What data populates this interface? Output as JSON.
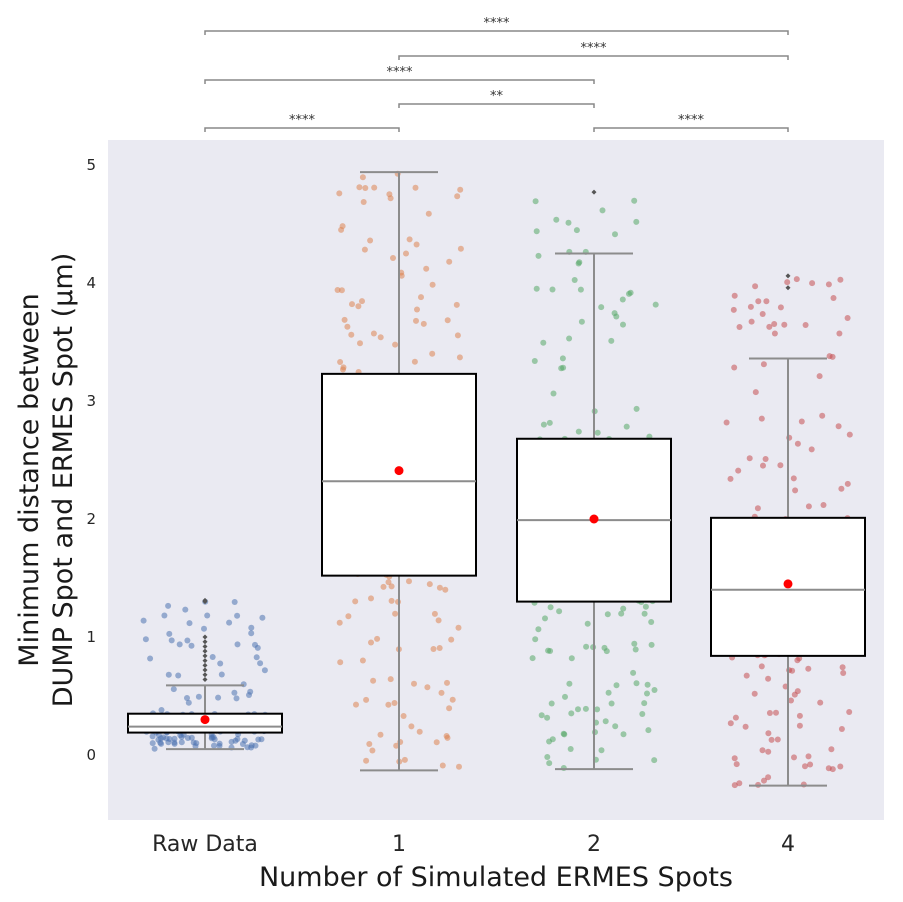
{
  "chart_data": {
    "type": "box",
    "xlabel": "Number of Simulated ERMES Spots",
    "ylabel_line1": "Minimum distance between",
    "ylabel_line2": "DUMP Spot and ERMES Spot (μm)",
    "categories": [
      "Raw Data",
      "1",
      "2",
      "4"
    ],
    "ylim": [
      -0.55,
      5.22
    ],
    "yticks": [
      0,
      1,
      2,
      3,
      4,
      5
    ],
    "grid": false,
    "colors": {
      "background": "#eaeaf2",
      "box_fill": "#ffffff",
      "box_edge": "#000000",
      "whisker": "#8c8c8c",
      "median": "#8c8c8c",
      "mean_marker": "#ff0000",
      "points": [
        "#4c72b0",
        "#dd8452",
        "#55a868",
        "#c44e52"
      ]
    },
    "boxes": [
      {
        "category": "Raw Data",
        "q1": 0.19,
        "median": 0.24,
        "q3": 0.35,
        "whisker_low": 0.05,
        "whisker_high": 0.59,
        "mean": 0.3,
        "outliers": [
          0.64,
          0.68,
          0.72,
          0.76,
          0.8,
          0.84,
          0.88,
          0.92,
          0.96,
          1.0,
          1.3,
          1.31
        ]
      },
      {
        "category": "1",
        "q1": 1.52,
        "median": 2.32,
        "q3": 3.23,
        "whisker_low": -0.13,
        "whisker_high": 4.94,
        "mean": 2.41,
        "outliers": []
      },
      {
        "category": "2",
        "q1": 1.3,
        "median": 1.99,
        "q3": 2.68,
        "whisker_low": -0.12,
        "whisker_high": 4.25,
        "mean": 2.0,
        "outliers": [
          4.77
        ]
      },
      {
        "category": "4",
        "q1": 0.84,
        "median": 1.4,
        "q3": 2.01,
        "whisker_low": -0.26,
        "whisker_high": 3.36,
        "mean": 1.45,
        "outliers": [
          3.96,
          4.06
        ]
      }
    ],
    "point_spread": [
      {
        "category": "Raw Data",
        "count": 180,
        "min": 0.05,
        "max": 1.31,
        "center": 0.24
      },
      {
        "category": "1",
        "count": 200,
        "min": -0.13,
        "max": 4.94,
        "center": 2.32
      },
      {
        "category": "2",
        "count": 200,
        "min": -0.12,
        "max": 4.77,
        "center": 1.99
      },
      {
        "category": "4",
        "count": 200,
        "min": -0.26,
        "max": 4.06,
        "center": 1.4
      }
    ],
    "significance": [
      {
        "from": "Raw Data",
        "to": "1",
        "label": "****"
      },
      {
        "from": "1",
        "to": "2",
        "label": "**"
      },
      {
        "from": "Raw Data",
        "to": "2",
        "label": "****"
      },
      {
        "from": "1",
        "to": "4",
        "label": "****"
      },
      {
        "from": "Raw Data",
        "to": "4",
        "label": "****"
      },
      {
        "from": "2",
        "to": "4",
        "label": "****"
      }
    ]
  }
}
